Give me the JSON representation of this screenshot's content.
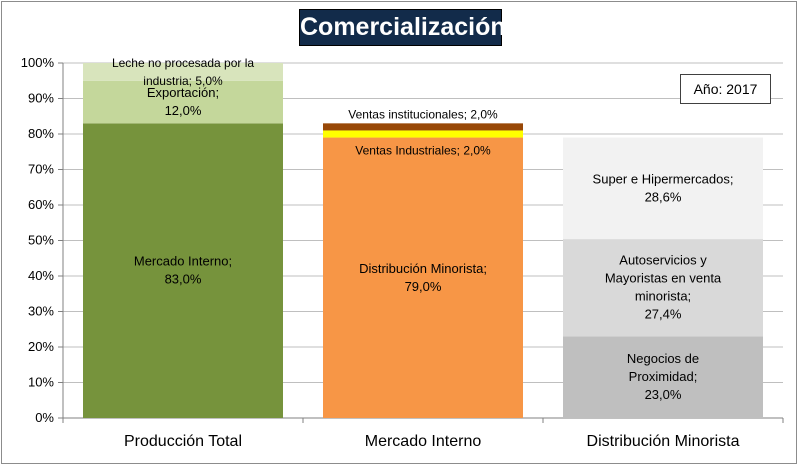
{
  "title": "Comercialización",
  "year_label": "Año: 2017",
  "colors": {
    "leche": "#d8e4bc",
    "exportacion": "#c4d79b",
    "mercado_interno": "#76933c",
    "distribucion_minorista": "#f79646",
    "ventas_industriales": "#ffff00",
    "ventas_institucionales": "#984807",
    "super": "#f2f2f2",
    "autoservicios": "#d9d9d9",
    "negocios": "#bfbfbf",
    "grid": "#bfbfbf",
    "axis": "#808080"
  },
  "chart_data": {
    "type": "bar",
    "stacked": true,
    "title": "Comercialización",
    "categories": [
      "Producción Total",
      "Mercado Interno",
      "Distribución Minorista"
    ],
    "ylim": [
      0,
      100
    ],
    "yticks": [
      "0%",
      "10%",
      "20%",
      "30%",
      "40%",
      "50%",
      "60%",
      "70%",
      "80%",
      "90%",
      "100%"
    ],
    "grid": true,
    "series": [
      {
        "category": "Producción Total",
        "segments": [
          {
            "name": "Mercado Interno",
            "value": 83.0,
            "label_lines": [
              "Mercado Interno;",
              "83,0%"
            ],
            "color_key": "mercado_interno"
          },
          {
            "name": "Exportación",
            "value": 12.0,
            "label_lines": [
              "Exportación;",
              "12,0%"
            ],
            "color_key": "exportacion"
          },
          {
            "name": "Leche no procesada por la industria",
            "value": 5.0,
            "label_lines": [
              "Leche no procesada por la",
              "industria; 5,0%"
            ],
            "color_key": "leche"
          }
        ]
      },
      {
        "category": "Mercado Interno",
        "segments": [
          {
            "name": "Distribución Minorista",
            "value": 79.0,
            "label_lines": [
              "Distribución Minorista;",
              "79,0%"
            ],
            "color_key": "distribucion_minorista"
          },
          {
            "name": "Ventas Industriales",
            "value": 2.0,
            "label_lines": [
              "Ventas Industriales; 2,0%"
            ],
            "color_key": "ventas_industriales"
          },
          {
            "name": "Ventas institucionales",
            "value": 2.0,
            "label_lines": [
              "Ventas institucionales; 2,0%"
            ],
            "color_key": "ventas_institucionales"
          }
        ]
      },
      {
        "category": "Distribución Minorista",
        "segments": [
          {
            "name": "Negocios de Proximidad",
            "value": 23.0,
            "label_lines": [
              "Negocios de",
              "Proximidad;",
              "23,0%"
            ],
            "color_key": "negocios"
          },
          {
            "name": "Autoservicios y Mayoristas en venta minorista",
            "value": 27.4,
            "label_lines": [
              "Autoservicios y",
              "Mayoristas en venta",
              "minorista;",
              "27,4%"
            ],
            "color_key": "autoservicios"
          },
          {
            "name": "Super e Hipermercados",
            "value": 28.6,
            "label_lines": [
              "Super e Hipermercados;",
              "28,6%"
            ],
            "color_key": "super"
          }
        ]
      }
    ]
  }
}
